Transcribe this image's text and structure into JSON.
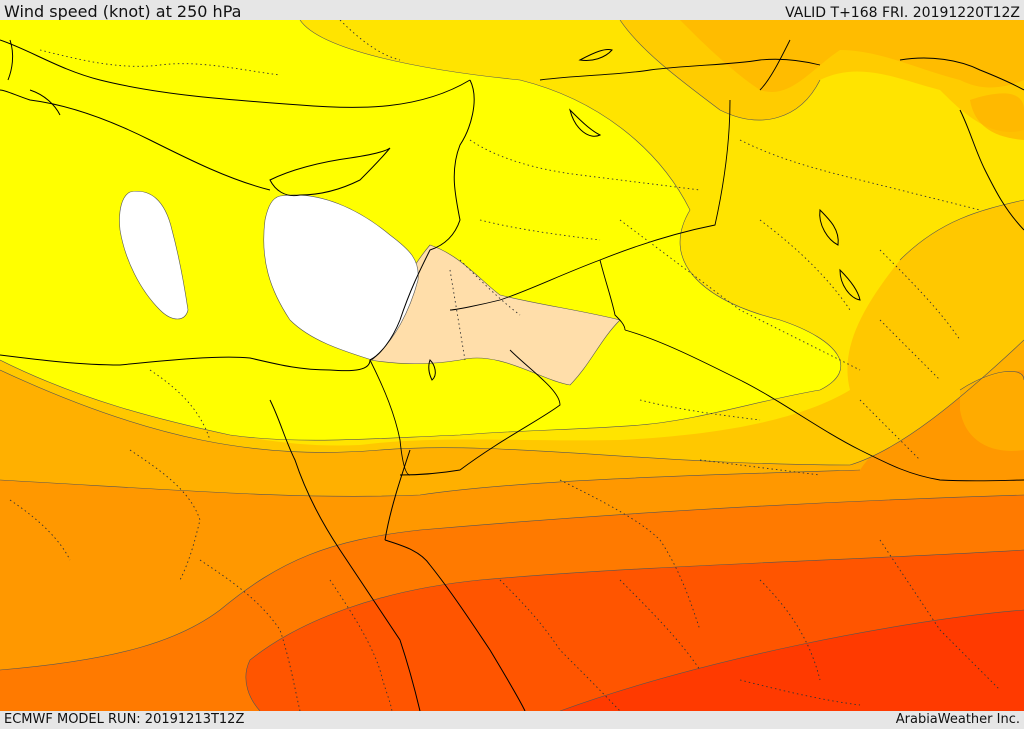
{
  "header": {
    "title": "Wind speed (knot) at 250 hPa",
    "valid": "VALID T+168 FRI. 20191220T12Z"
  },
  "footer": {
    "model_run": "ECMWF MODEL RUN: 20191213T12Z",
    "credit": "ArabiaWeather Inc."
  },
  "palette": {
    "calm": "#ffffff",
    "band_low": "#ffff00",
    "band_peach": "#ffdeaa",
    "band_2": "#ffe400",
    "band_3": "#ffc800",
    "band_4": "#ffb000",
    "band_5": "#ff9800",
    "band_6": "#ff7a00",
    "band_7": "#ff5500",
    "band_8": "#ff3a00"
  }
}
